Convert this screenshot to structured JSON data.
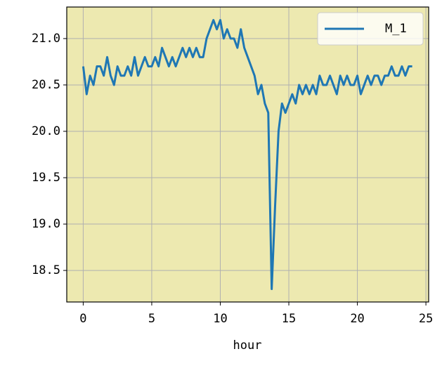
{
  "chart_data": {
    "type": "line",
    "xlabel": "hour",
    "x": [
      0,
      0.25,
      0.5,
      0.75,
      1,
      1.25,
      1.5,
      1.75,
      2,
      2.25,
      2.5,
      2.75,
      3,
      3.25,
      3.5,
      3.75,
      4,
      4.25,
      4.5,
      4.75,
      5,
      5.25,
      5.5,
      5.75,
      6,
      6.25,
      6.5,
      6.75,
      7,
      7.25,
      7.5,
      7.75,
      8,
      8.25,
      8.5,
      8.75,
      9,
      9.25,
      9.5,
      9.75,
      10,
      10.25,
      10.5,
      10.75,
      11,
      11.25,
      11.5,
      11.75,
      12,
      12.25,
      12.5,
      12.75,
      13,
      13.25,
      13.5,
      13.75,
      14,
      14.25,
      14.5,
      14.75,
      15,
      15.25,
      15.5,
      15.75,
      16,
      16.25,
      16.5,
      16.75,
      17,
      17.25,
      17.5,
      17.75,
      18,
      18.25,
      18.5,
      18.75,
      19,
      19.25,
      19.5,
      19.75,
      20,
      20.25,
      20.5,
      20.75,
      21,
      21.25,
      21.5,
      21.75,
      22,
      22.25,
      22.5,
      22.75,
      23,
      23.25,
      23.5,
      23.75,
      24
    ],
    "series": [
      {
        "name": "M_1",
        "color": "#1f77b4",
        "values": [
          20.7,
          20.4,
          20.6,
          20.5,
          20.7,
          20.7,
          20.6,
          20.8,
          20.6,
          20.5,
          20.7,
          20.6,
          20.6,
          20.7,
          20.6,
          20.8,
          20.6,
          20.7,
          20.8,
          20.7,
          20.7,
          20.8,
          20.7,
          20.9,
          20.8,
          20.7,
          20.8,
          20.7,
          20.8,
          20.9,
          20.8,
          20.9,
          20.8,
          20.9,
          20.8,
          20.8,
          21.0,
          21.1,
          21.2,
          21.1,
          21.2,
          21.0,
          21.1,
          21.0,
          21.0,
          20.9,
          21.1,
          20.9,
          20.8,
          20.7,
          20.6,
          20.4,
          20.5,
          20.3,
          20.2,
          18.3,
          19.2,
          20.0,
          20.3,
          20.2,
          20.3,
          20.4,
          20.3,
          20.5,
          20.4,
          20.5,
          20.4,
          20.5,
          20.4,
          20.6,
          20.5,
          20.5,
          20.6,
          20.5,
          20.4,
          20.6,
          20.5,
          20.6,
          20.5,
          20.5,
          20.6,
          20.4,
          20.5,
          20.6,
          20.5,
          20.6,
          20.6,
          20.5,
          20.6,
          20.6,
          20.7,
          20.6,
          20.6,
          20.7,
          20.6,
          20.7,
          20.7
        ]
      }
    ],
    "xlim": [
      -1.2,
      25.2
    ],
    "ylim": [
      18.16,
      21.34
    ],
    "xticks": [
      0,
      5,
      10,
      15,
      20,
      25
    ],
    "yticks": [
      {
        "value": 18.5,
        "label": "18.5"
      },
      {
        "value": 19,
        "label": "19.0"
      },
      19.5,
      {
        "value": 20,
        "label": "20.0"
      },
      20.5,
      {
        "value": 21,
        "label": "21.0"
      }
    ],
    "grid": true,
    "background": "#ede9b0",
    "legend": "upper right"
  }
}
